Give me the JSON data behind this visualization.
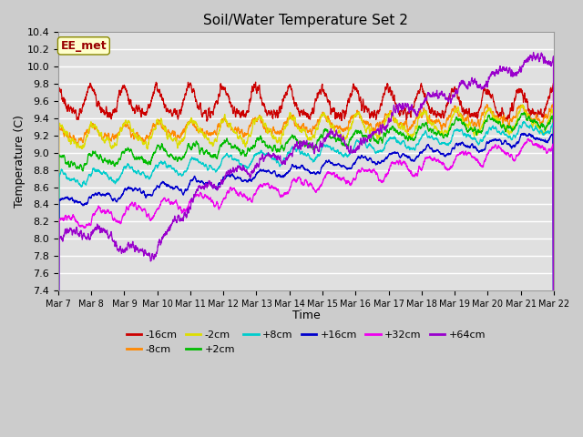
{
  "title": "Soil/Water Temperature Set 2",
  "xlabel": "Time",
  "ylabel": "Temperature (C)",
  "ylim": [
    7.4,
    10.4
  ],
  "annotation": "EE_met",
  "tick_labels": [
    "Mar 7",
    "Mar 8",
    "Mar 9",
    "Mar 10",
    "Mar 11",
    "Mar 12",
    "Mar 13",
    "Mar 14",
    "Mar 15",
    "Mar 16",
    "Mar 17",
    "Mar 18",
    "Mar 19",
    "Mar 20",
    "Mar 21",
    "Mar 22"
  ],
  "series": [
    {
      "label": "-16cm",
      "color": "#cc0000"
    },
    {
      "label": "-8cm",
      "color": "#ff8800"
    },
    {
      "label": "-2cm",
      "color": "#dddd00"
    },
    {
      "label": "+2cm",
      "color": "#00bb00"
    },
    {
      "label": "+8cm",
      "color": "#00cccc"
    },
    {
      "label": "+16cm",
      "color": "#0000cc"
    },
    {
      "label": "+32cm",
      "color": "#ee00ee"
    },
    {
      "label": "+64cm",
      "color": "#9900cc"
    }
  ],
  "days": 15,
  "seed": 7
}
